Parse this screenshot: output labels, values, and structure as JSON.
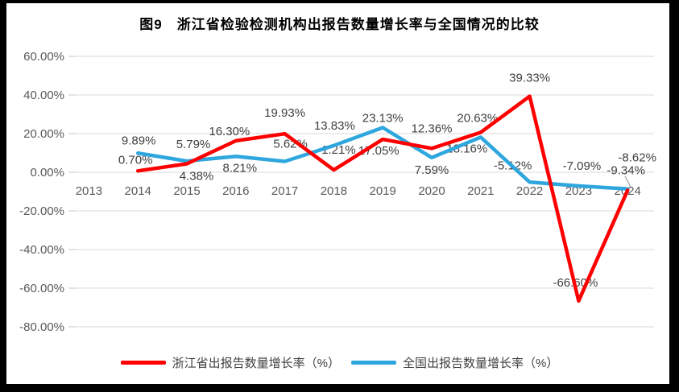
{
  "chart_data": {
    "type": "line",
    "title": "图9　浙江省检验检测机构出报告数量增长率与全国情况的比较",
    "categories": [
      "2013",
      "2014",
      "2015",
      "2016",
      "2017",
      "2018",
      "2019",
      "2020",
      "2021",
      "2022",
      "2023",
      "2024"
    ],
    "y_tick_labels": [
      "60.00%",
      "40.00%",
      "20.00%",
      "0.00%",
      "-20.00%",
      "-40.00%",
      "-60.00%",
      "-80.00%"
    ],
    "y_tick_values": [
      60,
      40,
      20,
      0,
      -20,
      -40,
      -60,
      -80
    ],
    "ylim": [
      -80,
      60
    ],
    "grid": true,
    "legend_position": "bottom",
    "series": [
      {
        "name": "浙江省出报告数量增长率（%）",
        "color": "#FE0000",
        "values": [
          null,
          0.7,
          4.38,
          16.3,
          19.93,
          1.21,
          17.05,
          12.36,
          20.63,
          39.33,
          -66.6,
          -9.34
        ],
        "point_labels": [
          "",
          "0.70%",
          "4.38%",
          "16.30%",
          "19.93%",
          "1.21%",
          "17.05%",
          "12.36%",
          "20.63%",
          "39.33%",
          "-66.60%",
          "-9.34%"
        ]
      },
      {
        "name": "全国出报告数量增长率（%）",
        "color": "#2EA6DE",
        "values": [
          null,
          9.89,
          5.79,
          8.21,
          5.62,
          13.83,
          23.13,
          7.59,
          18.16,
          -5.12,
          -7.09,
          -8.62
        ],
        "point_labels": [
          "",
          "9.89%",
          "5.79%",
          "8.21%",
          "5.62%",
          "13.83%",
          "23.13%",
          "7.59%",
          "18.16%",
          "-5.12%",
          "-7.09%",
          "-8.62%"
        ]
      }
    ]
  },
  "colors": {
    "gridline": "#D9D9D9",
    "axis_text": "#595959",
    "data_label_text": "#3F3F3F",
    "leader_line": "#9E9E9E",
    "border_black": "#000000",
    "border_red_accent": "#C00000"
  }
}
